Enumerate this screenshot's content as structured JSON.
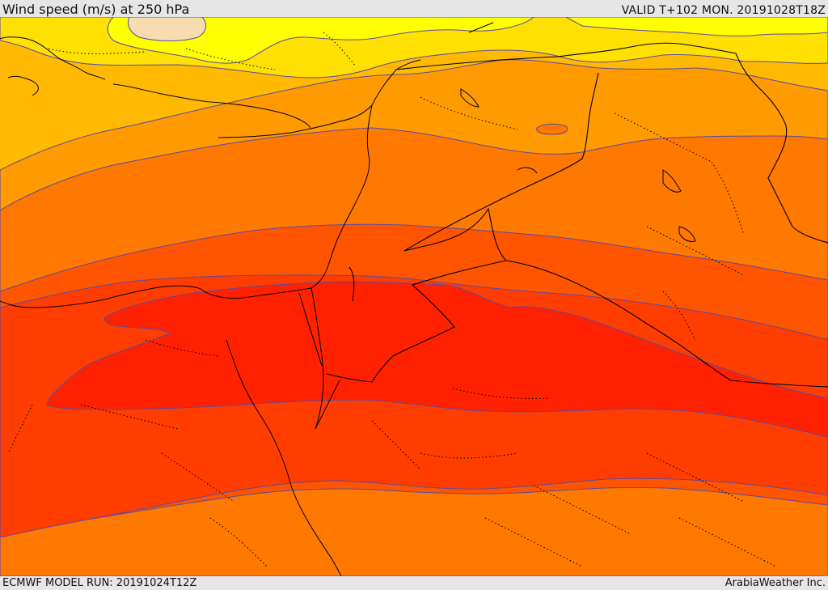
{
  "header": {
    "title": "Wind speed (m/s) at 250 hPa",
    "valid_time": "VALID T+102 MON. 20191028T18Z"
  },
  "footer": {
    "model_run": "ECMWF MODEL RUN: 20191024T12Z",
    "credit": "ArabiaWeather Inc."
  },
  "map": {
    "field": "wind speed 250 hPa",
    "colors": {
      "band_pale": "#f6dcb0",
      "band_yellow": "#ffff00",
      "band_gold": "#ffe000",
      "band_amber": "#ffb900",
      "band_orange": "#ff9a00",
      "band_dark_orange": "#ff7800",
      "band_red_orange": "#ff5500",
      "band_orange_red": "#ff3d00",
      "band_red": "#ff2100",
      "contour_line": "#5a4aa6",
      "coastline": "#000000"
    }
  }
}
